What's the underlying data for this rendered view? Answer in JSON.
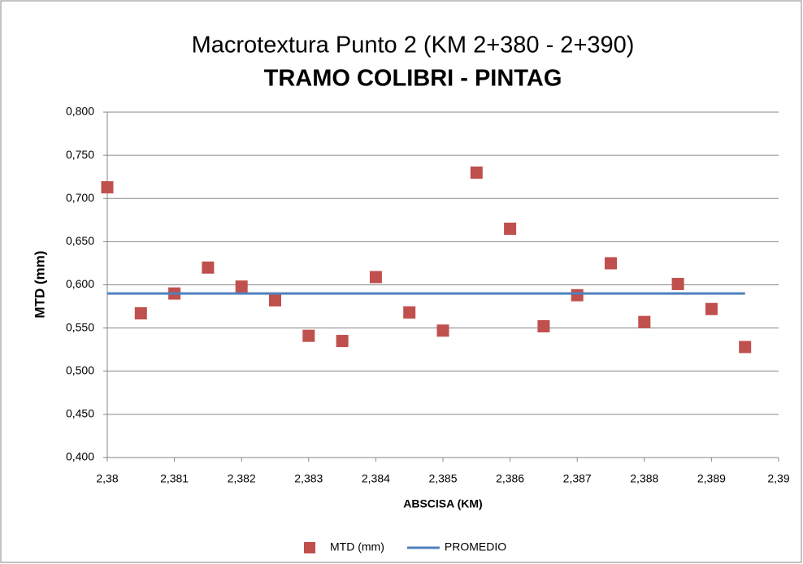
{
  "chart_data": {
    "type": "scatter",
    "title": "Macrotextura Punto 2 (KM 2+380 - 2+390)",
    "subtitle": "TRAMO COLIBRI - PINTAG",
    "x_label": "ABSCISA (KM)",
    "y_label": "MTD (mm)",
    "x": [
      2.38,
      2.3805,
      2.381,
      2.3815,
      2.382,
      2.3825,
      2.383,
      2.3835,
      2.384,
      2.3845,
      2.385,
      2.3855,
      2.386,
      2.3865,
      2.387,
      2.3875,
      2.388,
      2.3885,
      2.389,
      2.3895
    ],
    "series": [
      {
        "name": "MTD (mm)",
        "color": "#c0504d",
        "type": "scatter",
        "values": [
          0.713,
          0.567,
          0.59,
          0.62,
          0.598,
          0.582,
          0.541,
          0.535,
          0.609,
          0.568,
          0.547,
          0.73,
          0.665,
          0.552,
          0.588,
          0.625,
          0.557,
          0.601,
          0.572,
          0.528
        ]
      },
      {
        "name": "PROMEDIO",
        "color": "#4f81bd",
        "type": "line",
        "x": [
          2.38,
          2.3895
        ],
        "values": [
          0.59,
          0.59
        ]
      }
    ],
    "xlim": [
      2.38,
      2.39
    ],
    "xticks": [
      {
        "value": 2.38,
        "label": "2,38"
      },
      {
        "value": 2.381,
        "label": "2,381"
      },
      {
        "value": 2.382,
        "label": "2,382"
      },
      {
        "value": 2.383,
        "label": "2,383"
      },
      {
        "value": 2.384,
        "label": "2,384"
      },
      {
        "value": 2.385,
        "label": "2,385"
      },
      {
        "value": 2.386,
        "label": "2,386"
      },
      {
        "value": 2.387,
        "label": "2,387"
      },
      {
        "value": 2.388,
        "label": "2,388"
      },
      {
        "value": 2.389,
        "label": "2,389"
      },
      {
        "value": 2.39,
        "label": "2,39"
      }
    ],
    "ylim": [
      0.4,
      0.8
    ],
    "yticks": [
      {
        "value": 0.4,
        "label": "0,400"
      },
      {
        "value": 0.45,
        "label": "0,450"
      },
      {
        "value": 0.5,
        "label": "0,500"
      },
      {
        "value": 0.55,
        "label": "0,550"
      },
      {
        "value": 0.6,
        "label": "0,600"
      },
      {
        "value": 0.65,
        "label": "0,650"
      },
      {
        "value": 0.7,
        "label": "0,700"
      },
      {
        "value": 0.75,
        "label": "0,750"
      },
      {
        "value": 0.8,
        "label": "0,800"
      }
    ],
    "grid": true,
    "legend": "bottom"
  }
}
